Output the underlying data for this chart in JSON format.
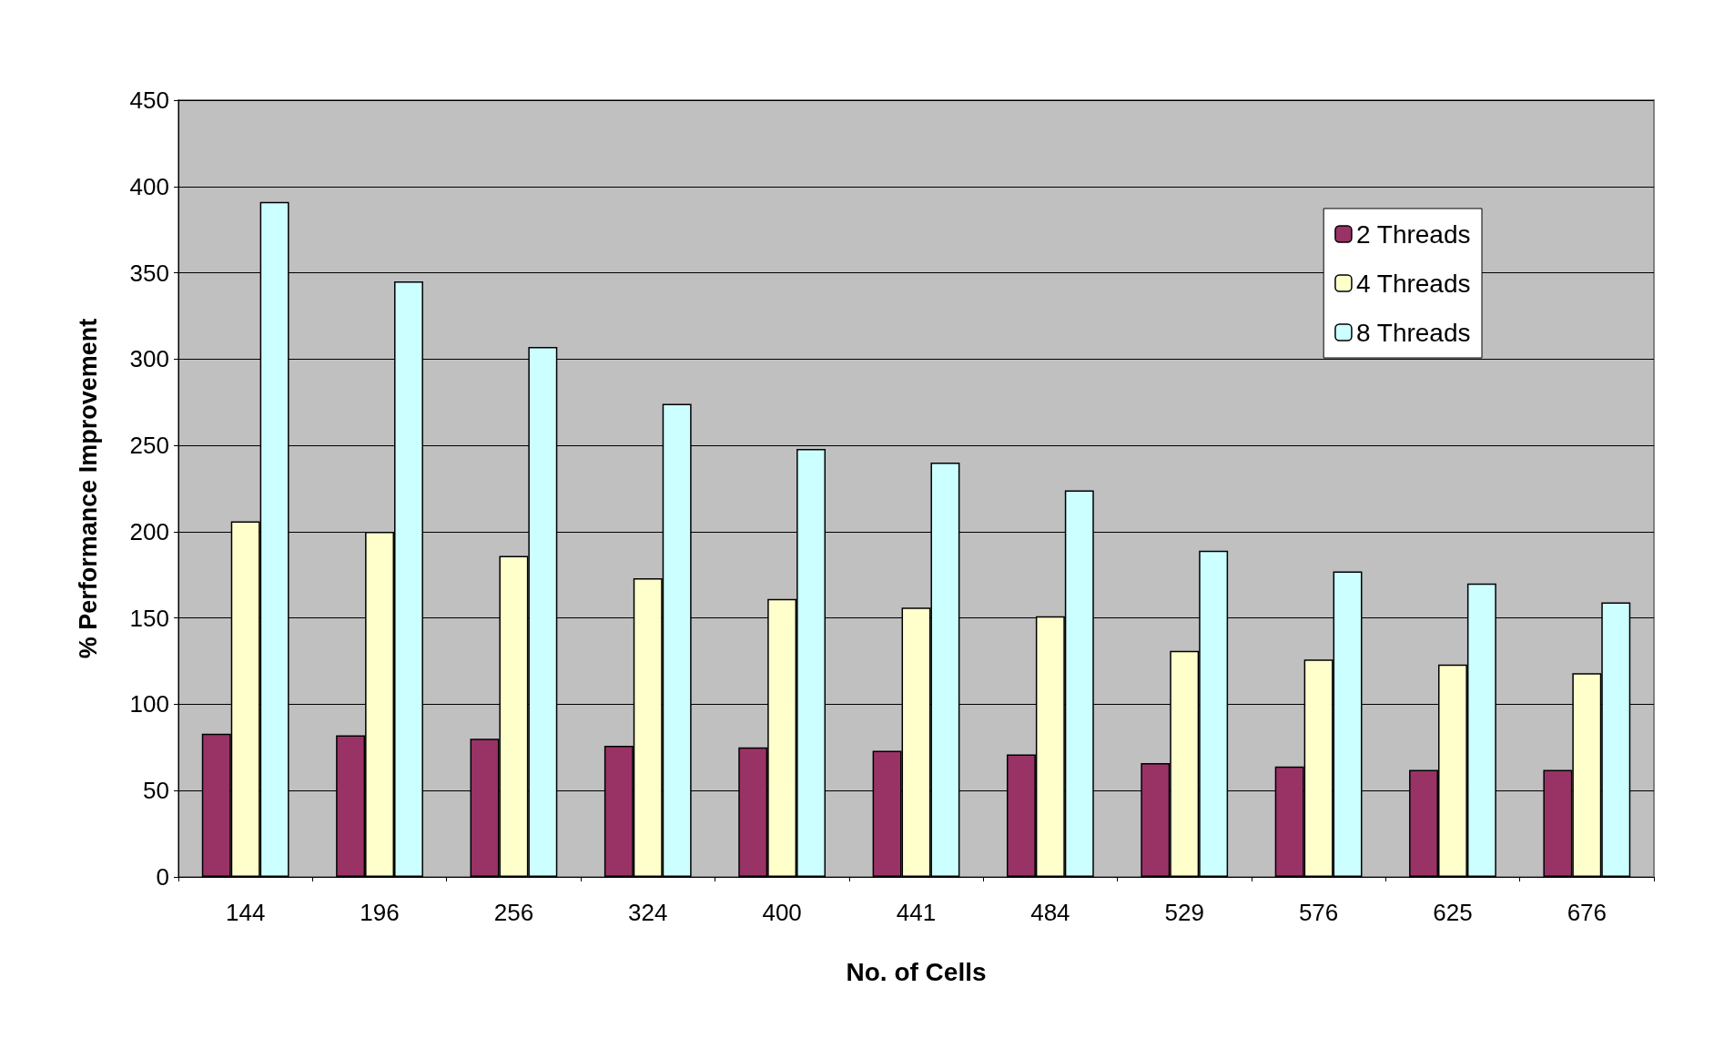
{
  "chart_data": {
    "type": "bar",
    "xlabel": "No. of Cells",
    "ylabel": "% Performance Improvement",
    "categories": [
      "144",
      "196",
      "256",
      "324",
      "400",
      "441",
      "484",
      "529",
      "576",
      "625",
      "676"
    ],
    "series": [
      {
        "name": "2 Threads",
        "color": "#993366",
        "values": [
          83,
          82,
          80,
          76,
          75,
          73,
          71,
          66,
          64,
          62,
          62
        ]
      },
      {
        "name": "4 Threads",
        "color": "#ffffcc",
        "values": [
          206,
          200,
          186,
          173,
          161,
          156,
          151,
          131,
          126,
          123,
          118
        ]
      },
      {
        "name": "8 Threads",
        "color": "#ccffff",
        "values": [
          391,
          345,
          307,
          274,
          248,
          240,
          224,
          189,
          177,
          170,
          159
        ]
      }
    ],
    "ylim": [
      0,
      450
    ],
    "yticks": [
      0,
      50,
      100,
      150,
      200,
      250,
      300,
      350,
      400,
      450
    ],
    "grid": "y",
    "legend": "top right"
  }
}
